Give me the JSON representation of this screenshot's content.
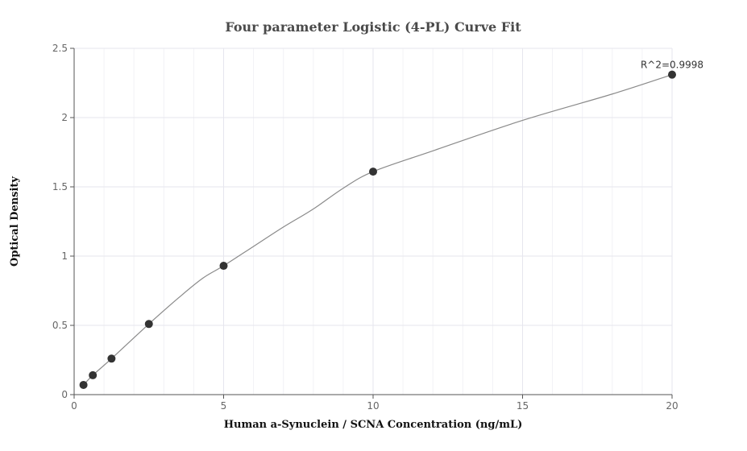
{
  "chart_data": {
    "type": "scatter",
    "title": "Four parameter Logistic (4-PL) Curve Fit",
    "xlabel": "Human a-Synuclein / SCNA Concentration (ng/mL)",
    "ylabel": "Optical Density",
    "xlim": [
      0,
      20
    ],
    "ylim": [
      0,
      2.5
    ],
    "x_ticks": [
      "0",
      "5",
      "10",
      "15",
      "20"
    ],
    "y_ticks": [
      "0",
      "0.5",
      "1",
      "1.5",
      "2",
      "2.5"
    ],
    "grid": true,
    "points": {
      "x": [
        0.3125,
        0.625,
        1.25,
        2.5,
        5,
        10,
        20
      ],
      "y": [
        0.07,
        0.14,
        0.26,
        0.51,
        0.93,
        1.61,
        2.31
      ]
    },
    "fit_curve": {
      "x": [
        0.3125,
        0.625,
        1.25,
        2.5,
        3.5,
        4.3,
        5,
        6,
        7,
        8,
        9,
        10,
        12,
        15,
        18,
        20
      ],
      "y": [
        0.07,
        0.14,
        0.26,
        0.51,
        0.7,
        0.84,
        0.93,
        1.07,
        1.21,
        1.34,
        1.49,
        1.61,
        1.76,
        1.98,
        2.17,
        2.31
      ]
    },
    "annotation": "R^2=0.9998",
    "colors": {
      "points": "#333333",
      "curve": "#8a8a8a",
      "grid": "#e6e6ee",
      "axis": "#555555"
    }
  }
}
